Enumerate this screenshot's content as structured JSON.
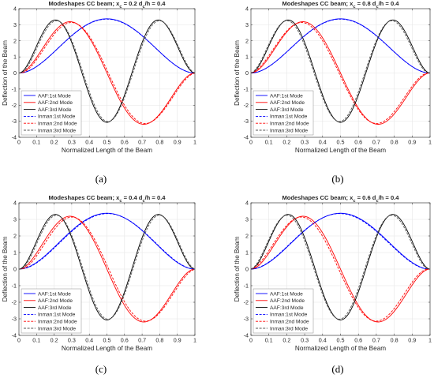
{
  "figure": {
    "xlabel": "Normalized Length of the Beam",
    "ylabel": "Deflection of the Beam",
    "legend": [
      "AAF:1st Mode",
      "AAF:2nd Mode",
      "AAF:3rd Mode",
      "Inman:1st Mode",
      "Inman:2nd Mode",
      "Inman:3rd Mode"
    ],
    "colors": {
      "mode1": "#0000ff",
      "mode2": "#ff0000",
      "mode3": "#000000",
      "grid": "#8c8c8c",
      "axes": "#262626"
    }
  },
  "chart_data": [
    {
      "type": "line",
      "panel_caption": "(a)",
      "title": "Modeshapes CC beam; x_c = 0.2   d_c/h = 0.4",
      "title_parts": {
        "prefix": "Modeshapes CC beam; x",
        "xc_sub": "c",
        "xc_value": " = 0.2   d",
        "dc_sub": "c",
        "dc_suffix": "/h = 0.4"
      },
      "xlabel": "Normalized Length of the Beam",
      "ylabel": "Deflection of the Beam",
      "xlim": [
        0,
        1
      ],
      "ylim": [
        -4,
        4
      ],
      "xticks": [
        0,
        0.1,
        0.2,
        0.3,
        0.4,
        0.5,
        0.6,
        0.7,
        0.8,
        0.9,
        1
      ],
      "yticks": [
        -4,
        -3,
        -2,
        -1,
        0,
        1,
        2,
        3,
        4
      ],
      "legend_location": "lower-left",
      "series": [
        {
          "name": "AAF:1st Mode",
          "mode": 1,
          "style": "solid",
          "color": "#0000ff",
          "amp": 3.37,
          "shift": 0
        },
        {
          "name": "AAF:2nd Mode",
          "mode": 2,
          "style": "solid",
          "color": "#ff0000",
          "amp": 3.19,
          "shift": 0
        },
        {
          "name": "AAF:3rd Mode",
          "mode": 3,
          "style": "solid",
          "color": "#000000",
          "amp": 3.3,
          "shift": 0
        },
        {
          "name": "Inman:1st Mode",
          "mode": 1,
          "style": "dashed",
          "color": "#0000ff",
          "amp": 3.35,
          "shift": 0
        },
        {
          "name": "Inman:2nd Mode",
          "mode": 2,
          "style": "dashed",
          "color": "#ff0000",
          "amp": 3.14,
          "shift": 0.008
        },
        {
          "name": "Inman:3rd Mode",
          "mode": 3,
          "style": "dashed",
          "color": "#555555",
          "amp": 3.25,
          "shift": 0.006
        }
      ]
    },
    {
      "type": "line",
      "panel_caption": "(b)",
      "title": "Modeshapes CC beam; x_c = 0.8   d_c/h = 0.4",
      "title_parts": {
        "prefix": "Modeshapes CC beam; x",
        "xc_sub": "c",
        "xc_value": " = 0.8   d",
        "dc_sub": "c",
        "dc_suffix": "/h = 0.4"
      },
      "xlabel": "Normalized Length of the Beam",
      "ylabel": "Deflection of the Beam",
      "xlim": [
        0,
        1
      ],
      "ylim": [
        -4,
        4
      ],
      "xticks": [
        0,
        0.1,
        0.2,
        0.3,
        0.4,
        0.5,
        0.6,
        0.7,
        0.8,
        0.9,
        1
      ],
      "yticks": [
        -4,
        -3,
        -2,
        -1,
        0,
        1,
        2,
        3,
        4
      ],
      "legend_location": "lower-left",
      "series": [
        {
          "name": "AAF:1st Mode",
          "mode": 1,
          "style": "solid",
          "color": "#0000ff",
          "amp": 3.37,
          "shift": 0
        },
        {
          "name": "AAF:2nd Mode",
          "mode": 2,
          "style": "solid",
          "color": "#ff0000",
          "amp": 3.19,
          "shift": 0
        },
        {
          "name": "AAF:3rd Mode",
          "mode": 3,
          "style": "solid",
          "color": "#000000",
          "amp": 3.3,
          "shift": 0
        },
        {
          "name": "Inman:1st Mode",
          "mode": 1,
          "style": "dashed",
          "color": "#0000ff",
          "amp": 3.35,
          "shift": 0
        },
        {
          "name": "Inman:2nd Mode",
          "mode": 2,
          "style": "dashed",
          "color": "#ff0000",
          "amp": 3.14,
          "shift": -0.008
        },
        {
          "name": "Inman:3rd Mode",
          "mode": 3,
          "style": "dashed",
          "color": "#555555",
          "amp": 3.25,
          "shift": -0.006
        }
      ]
    },
    {
      "type": "line",
      "panel_caption": "(c)",
      "title": "Modeshapes CC beam; x_c = 0.4   d_c/h = 0.4",
      "title_parts": {
        "prefix": "Modeshapes CC beam; x",
        "xc_sub": "c",
        "xc_value": " = 0.4   d",
        "dc_sub": "c",
        "dc_suffix": "/h = 0.4"
      },
      "xlabel": "Normalized Length of the Beam",
      "ylabel": "Deflection of the Beam",
      "xlim": [
        0,
        1
      ],
      "ylim": [
        -4,
        4
      ],
      "xticks": [
        0,
        0.1,
        0.2,
        0.3,
        0.4,
        0.5,
        0.6,
        0.7,
        0.8,
        0.9,
        1
      ],
      "yticks": [
        -4,
        -3,
        -2,
        -1,
        0,
        1,
        2,
        3,
        4
      ],
      "legend_location": "lower-left",
      "series": [
        {
          "name": "AAF:1st Mode",
          "mode": 1,
          "style": "solid",
          "color": "#0000ff",
          "amp": 3.37,
          "shift": 0
        },
        {
          "name": "AAF:2nd Mode",
          "mode": 2,
          "style": "solid",
          "color": "#ff0000",
          "amp": 3.19,
          "shift": 0
        },
        {
          "name": "AAF:3rd Mode",
          "mode": 3,
          "style": "solid",
          "color": "#000000",
          "amp": 3.3,
          "shift": 0
        },
        {
          "name": "Inman:1st Mode",
          "mode": 1,
          "style": "dashed",
          "color": "#0000ff",
          "amp": 3.35,
          "shift": 0.004
        },
        {
          "name": "Inman:2nd Mode",
          "mode": 2,
          "style": "dashed",
          "color": "#ff0000",
          "amp": 3.14,
          "shift": 0.01
        },
        {
          "name": "Inman:3rd Mode",
          "mode": 3,
          "style": "dashed",
          "color": "#555555",
          "amp": 3.25,
          "shift": 0.006
        }
      ]
    },
    {
      "type": "line",
      "panel_caption": "(d)",
      "title": "Modeshapes CC beam; x_c = 0.6   d_c/h = 0.4",
      "title_parts": {
        "prefix": "Modeshapes CC beam; x",
        "xc_sub": "c",
        "xc_value": " = 0.6   d",
        "dc_sub": "c",
        "dc_suffix": "/h = 0.4"
      },
      "xlabel": "Normalized Length of the Beam",
      "ylabel": "Deflection of the Beam",
      "xlim": [
        0,
        1
      ],
      "ylim": [
        -4,
        4
      ],
      "xticks": [
        0,
        0.1,
        0.2,
        0.3,
        0.4,
        0.5,
        0.6,
        0.7,
        0.8,
        0.9,
        1
      ],
      "yticks": [
        -4,
        -3,
        -2,
        -1,
        0,
        1,
        2,
        3,
        4
      ],
      "legend_location": "lower-left",
      "series": [
        {
          "name": "AAF:1st Mode",
          "mode": 1,
          "style": "solid",
          "color": "#0000ff",
          "amp": 3.37,
          "shift": 0
        },
        {
          "name": "AAF:2nd Mode",
          "mode": 2,
          "style": "solid",
          "color": "#ff0000",
          "amp": 3.19,
          "shift": 0
        },
        {
          "name": "AAF:3rd Mode",
          "mode": 3,
          "style": "solid",
          "color": "#000000",
          "amp": 3.3,
          "shift": 0
        },
        {
          "name": "Inman:1st Mode",
          "mode": 1,
          "style": "dashed",
          "color": "#0000ff",
          "amp": 3.35,
          "shift": -0.004
        },
        {
          "name": "Inman:2nd Mode",
          "mode": 2,
          "style": "dashed",
          "color": "#ff0000",
          "amp": 3.14,
          "shift": -0.01
        },
        {
          "name": "Inman:3rd Mode",
          "mode": 3,
          "style": "dashed",
          "color": "#555555",
          "amp": 3.25,
          "shift": -0.006
        }
      ]
    }
  ]
}
